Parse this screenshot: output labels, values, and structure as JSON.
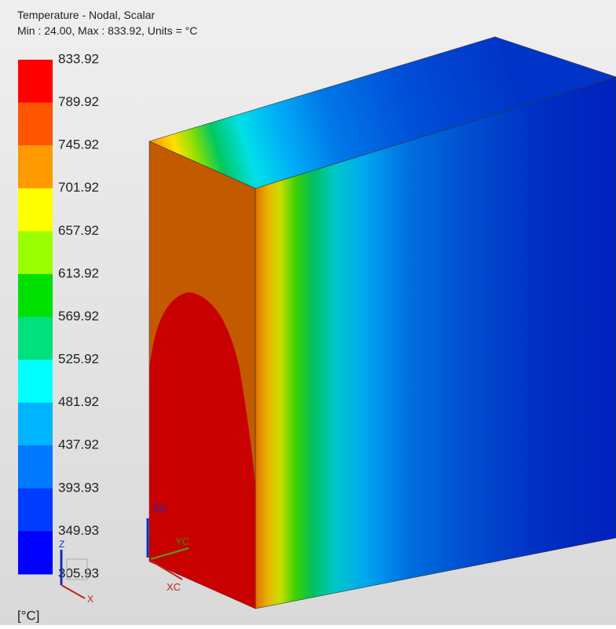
{
  "header": {
    "title": "Temperature - Nodal, Scalar",
    "subtitle": "Min : 24.00, Max : 833.92, Units = °C"
  },
  "legend": {
    "labels": [
      "833.92",
      "789.92",
      "745.92",
      "701.92",
      "657.92",
      "613.92",
      "569.92",
      "525.92",
      "481.92",
      "437.92",
      "393.93",
      "349.93",
      "305.93"
    ],
    "colors": [
      "#ff0000",
      "#ff5500",
      "#ff9a00",
      "#ffff00",
      "#9cff00",
      "#00e000",
      "#00e07c",
      "#00ffff",
      "#00b4ff",
      "#0078ff",
      "#003cff",
      "#0000ff"
    ],
    "units": "[°C]"
  },
  "triad": {
    "zc": "ZC",
    "yc": "YC",
    "xc": "XC",
    "z": "Z",
    "x": "X"
  }
}
